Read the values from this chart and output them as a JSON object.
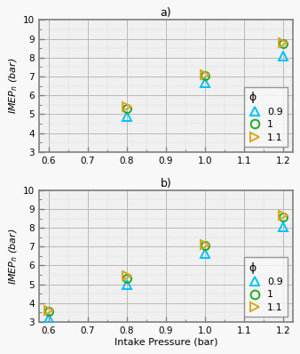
{
  "subplot_a": {
    "title": "a)",
    "x": [
      0.8,
      0.8,
      0.8,
      1.0,
      1.0,
      1.0,
      1.2,
      1.2,
      1.2
    ],
    "y": [
      4.9,
      5.3,
      5.4,
      6.65,
      7.05,
      7.1,
      8.1,
      8.75,
      8.8
    ],
    "phi": [
      0.9,
      1.0,
      1.1,
      0.9,
      1.0,
      1.1,
      0.9,
      1.0,
      1.1
    ],
    "xlim": [
      0.575,
      1.225
    ],
    "ylim": [
      3,
      10
    ],
    "yticks": [
      3,
      4,
      5,
      6,
      7,
      8,
      9,
      10
    ],
    "xticks": [
      0.6,
      0.7,
      0.8,
      0.9,
      1.0,
      1.1,
      1.2
    ]
  },
  "subplot_b": {
    "title": "b)",
    "x": [
      0.6,
      0.6,
      0.6,
      0.8,
      0.8,
      0.8,
      1.0,
      1.0,
      1.0,
      1.2,
      1.2,
      1.2
    ],
    "y": [
      3.2,
      3.55,
      3.6,
      5.0,
      5.3,
      5.45,
      6.65,
      7.05,
      7.1,
      8.05,
      8.55,
      8.65
    ],
    "phi": [
      0.9,
      1.0,
      1.1,
      0.9,
      1.0,
      1.1,
      0.9,
      1.0,
      1.1,
      0.9,
      1.0,
      1.1
    ],
    "xlim": [
      0.575,
      1.225
    ],
    "ylim": [
      3,
      10
    ],
    "yticks": [
      3,
      4,
      5,
      6,
      7,
      8,
      9,
      10
    ],
    "xticks": [
      0.6,
      0.7,
      0.8,
      0.9,
      1.0,
      1.1,
      1.2
    ]
  },
  "marker_cyan": "#00BFFF",
  "marker_green": "#22AA22",
  "marker_yellow": "#DAA520",
  "phi_symbol": "ϕ",
  "axes_bg": "#f0f0f0",
  "fig_bg": "#f8f8f8",
  "grid_major_color": "#b0b0b0",
  "grid_minor_color": "#d8d8d8",
  "ylabel": "IMEP_n (bar)",
  "xlabel": "Intake Pressure (bar)"
}
